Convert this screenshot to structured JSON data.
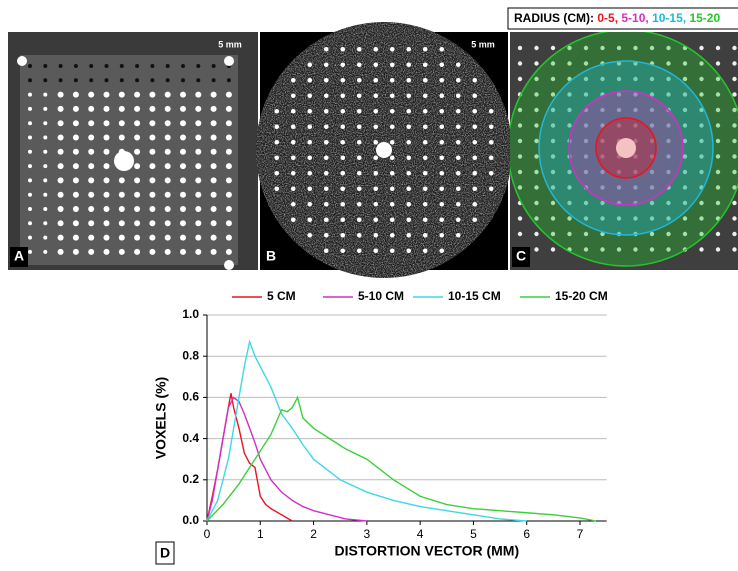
{
  "panels": [
    {
      "label": "A",
      "scale": "5 mm"
    },
    {
      "label": "B",
      "scale": "5 mm"
    },
    {
      "label": "C"
    }
  ],
  "radius_legend": {
    "label": "RADIUS (CM):",
    "items": [
      {
        "text": "0-5,",
        "color": "#e8141e"
      },
      {
        "text": "5-10,",
        "color": "#d12fc8"
      },
      {
        "text": "10-15,",
        "color": "#1fb8d8"
      },
      {
        "text": "15-20",
        "color": "#22c82a"
      }
    ]
  },
  "chart_data": {
    "type": "line",
    "panel_label": "D",
    "x_label": "DISTORTION VECTOR (MM)",
    "y_label": "VOXELS (%)",
    "xlim": [
      0,
      7.5
    ],
    "ylim": [
      0,
      1
    ],
    "xticks": [
      0,
      1,
      2,
      3,
      4,
      5,
      6,
      7
    ],
    "yticks": [
      {
        "value": 0,
        "label": "0.0"
      },
      0.2,
      0.4,
      0.6,
      0.8,
      {
        "value": 1,
        "label": "1.0"
      }
    ],
    "grid": true,
    "series": [
      {
        "name": "5 CM",
        "color": "#e8141e",
        "x": [
          0,
          0.1,
          0.2,
          0.3,
          0.4,
          0.45,
          0.5,
          0.6,
          0.7,
          0.8,
          0.9,
          1.0,
          1.1,
          1.2,
          1.4,
          1.6
        ],
        "values": [
          0,
          0.12,
          0.25,
          0.4,
          0.55,
          0.62,
          0.55,
          0.45,
          0.33,
          0.28,
          0.26,
          0.12,
          0.08,
          0.06,
          0.03,
          0
        ]
      },
      {
        "name": "5-10 CM",
        "color": "#d12fc8",
        "x": [
          0,
          0.1,
          0.2,
          0.3,
          0.4,
          0.5,
          0.6,
          0.7,
          0.8,
          0.9,
          1.0,
          1.2,
          1.4,
          1.6,
          1.8,
          2.0,
          2.3,
          2.6,
          3.0
        ],
        "values": [
          0,
          0.1,
          0.25,
          0.4,
          0.55,
          0.6,
          0.58,
          0.52,
          0.45,
          0.38,
          0.3,
          0.2,
          0.14,
          0.1,
          0.07,
          0.05,
          0.03,
          0.01,
          0
        ]
      },
      {
        "name": "10-15 CM",
        "color": "#3fd8e6",
        "x": [
          0,
          0.2,
          0.4,
          0.6,
          0.7,
          0.8,
          0.9,
          1.0,
          1.2,
          1.4,
          1.6,
          1.8,
          2.0,
          2.5,
          3.0,
          3.5,
          4.0,
          4.5,
          5.0,
          5.5,
          6.0
        ],
        "values": [
          0,
          0.1,
          0.3,
          0.6,
          0.75,
          0.87,
          0.8,
          0.75,
          0.65,
          0.52,
          0.45,
          0.37,
          0.3,
          0.2,
          0.14,
          0.1,
          0.07,
          0.05,
          0.03,
          0.01,
          0
        ]
      },
      {
        "name": "15-20 CM",
        "color": "#3ccf3c",
        "x": [
          0,
          0.3,
          0.6,
          0.9,
          1.2,
          1.4,
          1.5,
          1.6,
          1.7,
          1.8,
          2.0,
          2.3,
          2.6,
          3.0,
          3.5,
          4.0,
          4.5,
          5.0,
          5.5,
          6.0,
          6.5,
          7.0,
          7.3
        ],
        "values": [
          0,
          0.08,
          0.18,
          0.3,
          0.42,
          0.54,
          0.53,
          0.55,
          0.6,
          0.5,
          0.45,
          0.4,
          0.35,
          0.3,
          0.2,
          0.12,
          0.08,
          0.06,
          0.05,
          0.04,
          0.03,
          0.015,
          0
        ]
      }
    ]
  }
}
